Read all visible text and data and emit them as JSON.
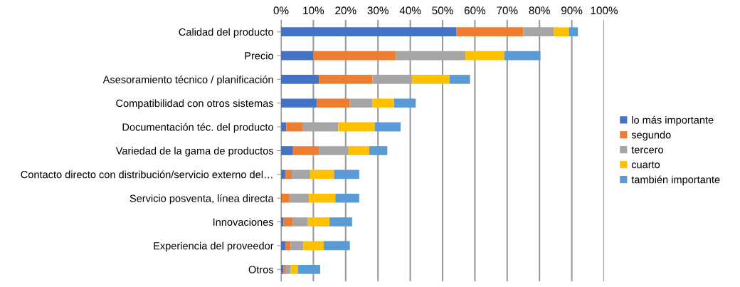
{
  "chart_data": {
    "type": "bar",
    "orientation": "horizontal",
    "stacked": true,
    "grid": "x",
    "legend": "right",
    "categories": [
      "Calidad del producto",
      "Precio",
      "Asesoramiento técnico / planificación",
      "Compatibilidad con otros sistemas",
      "Documentación téc. del producto",
      "Variedad de la gama de productos",
      "Contacto directo con distribución/servicio externo del…",
      "Servicio posventa, línea directa",
      "Innovaciones",
      "Experiencia del proveedor",
      "Otros"
    ],
    "xlim": [
      0,
      100
    ],
    "xticks": [
      {
        "value": 0,
        "label": "0%"
      },
      {
        "value": 10,
        "label": "10%"
      },
      {
        "value": 20,
        "label": "20%"
      },
      {
        "value": 30,
        "label": "30%"
      },
      {
        "value": 40,
        "label": "40%"
      },
      {
        "value": 50,
        "label": "50%"
      },
      {
        "value": 60,
        "label": "60%"
      },
      {
        "value": 70,
        "label": "70%"
      },
      {
        "value": 80,
        "label": "80%"
      },
      {
        "value": 90,
        "label": "90%"
      },
      {
        "value": 100,
        "label": "100%"
      }
    ],
    "series": [
      {
        "name": "lo más importante",
        "color": "#4472c4",
        "values": [
          54.2,
          10.0,
          11.7,
          11.0,
          1.6,
          3.7,
          1.3,
          0.2,
          0.8,
          1.3,
          0.8
        ]
      },
      {
        "name": "segundo",
        "color": "#ed7d31",
        "values": [
          20.8,
          25.6,
          16.6,
          10.2,
          5.0,
          8.0,
          2.0,
          2.4,
          2.9,
          1.7,
          0.7
        ]
      },
      {
        "name": "tercero",
        "color": "#a5a5a5",
        "values": [
          9.4,
          21.5,
          12.2,
          7.1,
          11.1,
          9.2,
          5.7,
          6.0,
          4.6,
          3.9,
          1.5
        ]
      },
      {
        "name": "cuarto",
        "color": "#ffc000",
        "values": [
          4.7,
          12.0,
          11.7,
          6.7,
          11.3,
          6.4,
          7.4,
          8.2,
          6.7,
          6.3,
          2.2
        ]
      },
      {
        "name": "también importante",
        "color": "#5b9bd5",
        "values": [
          2.8,
          11.2,
          6.3,
          6.7,
          8.0,
          5.6,
          7.8,
          7.4,
          7.0,
          8.1,
          6.9
        ]
      }
    ]
  }
}
